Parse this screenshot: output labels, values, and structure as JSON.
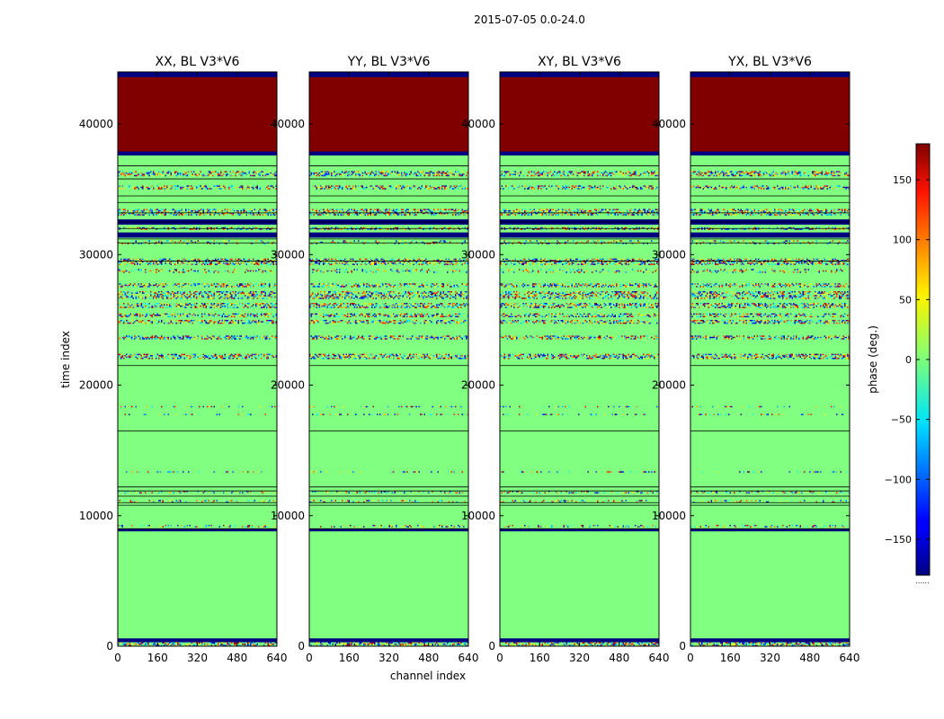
{
  "chart_data": {
    "type": "heatmap",
    "suptitle": "2015-07-05 0.0-24.0",
    "xlabel": "channel index",
    "ylabel": "time index",
    "xlim": [
      0,
      640
    ],
    "ylim": [
      0,
      44000
    ],
    "xticks": [
      0,
      160,
      320,
      480,
      640
    ],
    "yticks": [
      0,
      10000,
      20000,
      30000,
      40000
    ],
    "panels": [
      {
        "title": "XX, BL V3*V6"
      },
      {
        "title": "YY, BL V3*V6"
      },
      {
        "title": "XY, BL V3*V6"
      },
      {
        "title": "YX, BL V3*V6"
      }
    ],
    "colorbar": {
      "label": "phase (deg.)",
      "range": [
        -180,
        180
      ],
      "ticks": [
        150,
        100,
        50,
        0,
        -50,
        -100,
        -150
      ],
      "bottom_note": "......"
    },
    "background_phase_deg": 0,
    "bands": [
      {
        "y0": 37800,
        "y1": 44000,
        "kind": "solid",
        "phase": 180
      },
      {
        "y0": 43600,
        "y1": 44000,
        "kind": "solid",
        "phase": -180
      },
      {
        "y0": 37600,
        "y1": 37900,
        "kind": "solid",
        "phase": -180
      },
      {
        "y0": 36000,
        "y1": 36400,
        "kind": "noisy"
      },
      {
        "y0": 35000,
        "y1": 35300,
        "kind": "noisy"
      },
      {
        "y0": 33000,
        "y1": 33500,
        "kind": "noisy"
      },
      {
        "y0": 32300,
        "y1": 32700,
        "kind": "solid",
        "phase": -180
      },
      {
        "y0": 31900,
        "y1": 32100,
        "kind": "noisy"
      },
      {
        "y0": 31300,
        "y1": 31700,
        "kind": "solid",
        "phase": -180
      },
      {
        "y0": 30800,
        "y1": 31100,
        "kind": "sparse"
      },
      {
        "y0": 29200,
        "y1": 29700,
        "kind": "noisy"
      },
      {
        "y0": 28600,
        "y1": 28900,
        "kind": "sparse"
      },
      {
        "y0": 27500,
        "y1": 27800,
        "kind": "noisy"
      },
      {
        "y0": 26600,
        "y1": 27200,
        "kind": "noisy"
      },
      {
        "y0": 25900,
        "y1": 26300,
        "kind": "noisy"
      },
      {
        "y0": 25200,
        "y1": 25500,
        "kind": "noisy"
      },
      {
        "y0": 24700,
        "y1": 25000,
        "kind": "noisy"
      },
      {
        "y0": 23500,
        "y1": 23800,
        "kind": "noisy"
      },
      {
        "y0": 22000,
        "y1": 22400,
        "kind": "noisy"
      },
      {
        "y0": 18300,
        "y1": 18400,
        "kind": "sparse"
      },
      {
        "y0": 17700,
        "y1": 17800,
        "kind": "sparse"
      },
      {
        "y0": 13300,
        "y1": 13400,
        "kind": "sparse"
      },
      {
        "y0": 11700,
        "y1": 11900,
        "kind": "sparse"
      },
      {
        "y0": 11000,
        "y1": 11200,
        "kind": "sparse"
      },
      {
        "y0": 9100,
        "y1": 9300,
        "kind": "sparse"
      },
      {
        "y0": 8800,
        "y1": 9000,
        "kind": "solid",
        "phase": -180
      },
      {
        "y0": 300,
        "y1": 600,
        "kind": "solid",
        "phase": -180
      },
      {
        "y0": 0,
        "y1": 300,
        "kind": "noisy"
      }
    ],
    "flag_lines": [
      36800,
      35800,
      34500,
      34000,
      33200,
      32500,
      32000,
      31200,
      30900,
      29500,
      21500,
      16500,
      12200,
      11900,
      11500,
      11000,
      10800,
      9000
    ]
  }
}
